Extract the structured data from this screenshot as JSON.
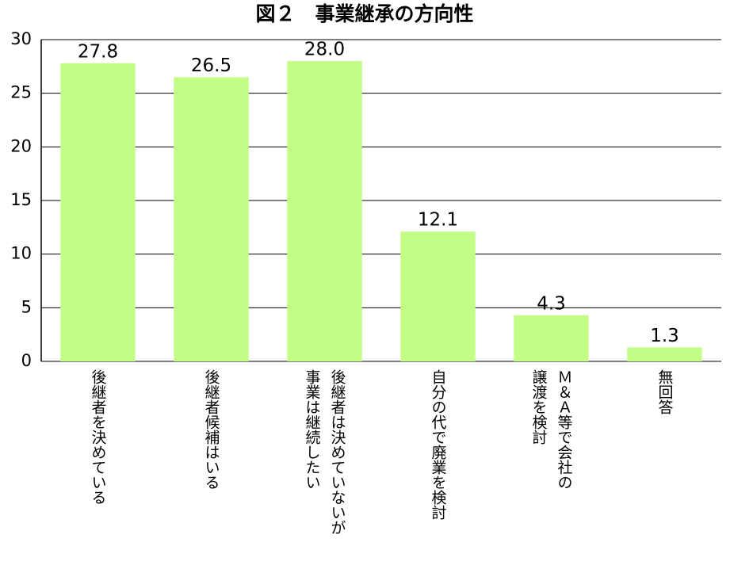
{
  "chart_data": {
    "type": "bar",
    "title": "図２　事業継承の方向性",
    "categories": [
      "後継者を決めている",
      "後継者候補はいる",
      "後継者は決めていないが\n事業は継続したい",
      "自分の代で廃業を検討",
      "Ｍ＆Ａ等で会社の\n譲渡を検討",
      "無回答"
    ],
    "values": [
      27.8,
      26.5,
      28.0,
      12.1,
      4.3,
      1.3
    ],
    "value_labels": [
      "27.8",
      "26.5",
      "28.0",
      "12.1",
      "4.3",
      "1.3"
    ],
    "color": "#c2fd86",
    "ylim": [
      0,
      30
    ],
    "yticks": [
      0,
      5,
      10,
      15,
      20,
      25,
      30
    ],
    "grid": true
  }
}
